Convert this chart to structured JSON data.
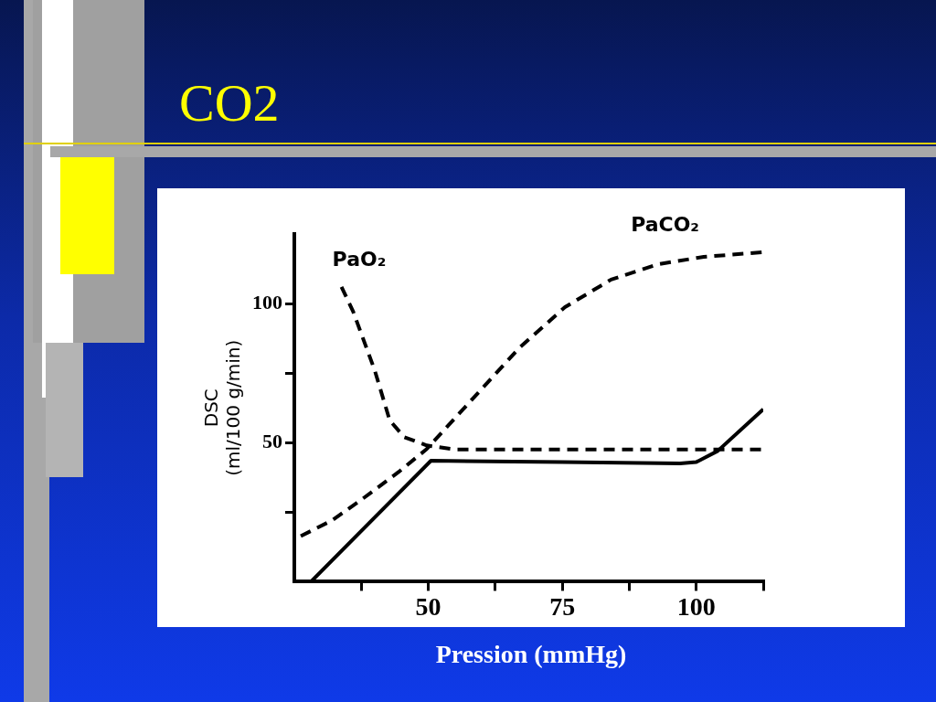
{
  "chart_data": {
    "type": "line",
    "title": "CO2",
    "xlabel": "Pression (mmHg)",
    "ylabel": "DSC\n(ml/100 g/min)",
    "xlim": [
      25,
      112.5
    ],
    "xticks": [
      {
        "value": 37.5,
        "label": null
      },
      50,
      {
        "value": 62.5,
        "label": null
      },
      75,
      {
        "value": 87.5,
        "label": null
      },
      100,
      {
        "value": 112.5,
        "label": null
      }
    ],
    "ylim": [
      0,
      125
    ],
    "yticks": [
      {
        "value": 25,
        "label": null
      },
      50,
      {
        "value": 75,
        "label": null
      },
      100
    ],
    "legend": false,
    "series": [
      {
        "name": "PaO₂",
        "color": "#000000",
        "line_style": "dashed",
        "x": [
          33.8,
          36,
          40,
          42.8,
          45.5,
          49.7,
          55,
          80,
          112.5
        ],
        "values": [
          106,
          97,
          76,
          58,
          52,
          49,
          47.5,
          47.5,
          47.5
        ]
      },
      {
        "name": "PaCO₂",
        "color": "#000000",
        "line_style": "dashed",
        "x": [
          26.2,
          32,
          37.6,
          44.5,
          49.7,
          58.3,
          66.9,
          75.5,
          84.1,
          92.8,
          101.4,
          112.2
        ],
        "values": [
          16.4,
          22,
          29.6,
          39.5,
          47.7,
          65.8,
          83.9,
          98.7,
          108.6,
          114.1,
          116.8,
          118.4
        ]
      },
      {
        "color": "#000000",
        "line_style": "solid",
        "x": [
          28.1,
          50.5,
          75,
          97,
          100,
          104,
          112.5
        ],
        "values": [
          0,
          43.5,
          43,
          42.5,
          43,
          47,
          62
        ]
      }
    ]
  }
}
